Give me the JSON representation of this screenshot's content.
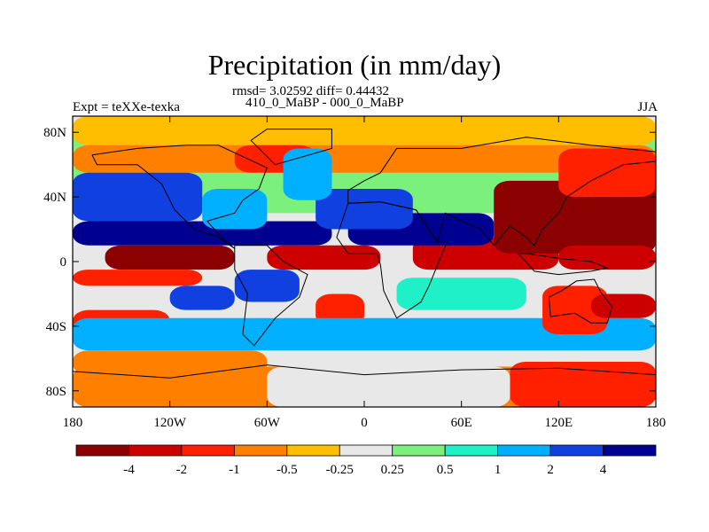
{
  "chart_data": {
    "type": "heatmap",
    "title": "Precipitation (in mm/day)",
    "stats_line": "rmsd= 3.02592 diff= 0.44432",
    "subtitle": "410_0_MaBP - 000_0_MaBP",
    "left_label": "Expt = teXXe-texka",
    "right_label": "JJA",
    "x_ticks": [
      {
        "value": -180,
        "label": "180"
      },
      {
        "value": -120,
        "label": "120W"
      },
      {
        "value": -60,
        "label": "60W"
      },
      {
        "value": 0,
        "label": "0"
      },
      {
        "value": 60,
        "label": "60E"
      },
      {
        "value": 120,
        "label": "120E"
      },
      {
        "value": 180,
        "label": "180"
      }
    ],
    "y_ticks": [
      {
        "value": 80,
        "label": "80N"
      },
      {
        "value": 40,
        "label": "40N"
      },
      {
        "value": 0,
        "label": "0"
      },
      {
        "value": -40,
        "label": "40S"
      },
      {
        "value": -80,
        "label": "80S"
      }
    ],
    "xlim": [
      -180,
      180
    ],
    "ylim": [
      -90,
      90
    ],
    "colorbar": {
      "levels": [
        "-4",
        "-2",
        "-1",
        "-0.5",
        "-0.25",
        "0.25",
        "0.5",
        "1",
        "2",
        "4"
      ],
      "colors": [
        "#8b0000",
        "#cd0000",
        "#ff2000",
        "#ff7f00",
        "#ffbf00",
        "#e8e8e8",
        "#7cf07c",
        "#20f0c8",
        "#00b0ff",
        "#1040e0",
        "#000090"
      ]
    },
    "fields": [
      {
        "lat": [
          30,
          85
        ],
        "lon": [
          -180,
          180
        ],
        "v": 0.3
      },
      {
        "lat": [
          72,
          90
        ],
        "lon": [
          -180,
          180
        ],
        "v": -0.35
      },
      {
        "lat": [
          55,
          72
        ],
        "lon": [
          -180,
          180
        ],
        "v": -0.6
      },
      {
        "lat": [
          25,
          55
        ],
        "lon": [
          -180,
          -100
        ],
        "v": 2.5
      },
      {
        "lat": [
          10,
          25
        ],
        "lon": [
          -180,
          -20
        ],
        "v": 5
      },
      {
        "lat": [
          20,
          45
        ],
        "lon": [
          -100,
          -60
        ],
        "v": 1.5
      },
      {
        "lat": [
          -5,
          10
        ],
        "lon": [
          -160,
          -80
        ],
        "v": -5
      },
      {
        "lat": [
          -15,
          -5
        ],
        "lon": [
          -180,
          -100
        ],
        "v": -1.5
      },
      {
        "lat": [
          -5,
          10
        ],
        "lon": [
          -60,
          10
        ],
        "v": -3
      },
      {
        "lat": [
          -5,
          15
        ],
        "lon": [
          30,
          120
        ],
        "v": -3.5
      },
      {
        "lat": [
          10,
          30
        ],
        "lon": [
          -10,
          80
        ],
        "v": 5
      },
      {
        "lat": [
          20,
          45
        ],
        "lon": [
          -30,
          30
        ],
        "v": 2.5
      },
      {
        "lat": [
          5,
          50
        ],
        "lon": [
          80,
          180
        ],
        "v": -4.5
      },
      {
        "lat": [
          -5,
          10
        ],
        "lon": [
          120,
          180
        ],
        "v": -2.5
      },
      {
        "lat": [
          -25,
          -5
        ],
        "lon": [
          -80,
          -40
        ],
        "v": 2
      },
      {
        "lat": [
          -40,
          -20
        ],
        "lon": [
          -30,
          0
        ],
        "v": -1.5
      },
      {
        "lat": [
          -50,
          -30
        ],
        "lon": [
          -180,
          -120
        ],
        "v": -2
      },
      {
        "lat": [
          -30,
          -15
        ],
        "lon": [
          -120,
          -80
        ],
        "v": 2
      },
      {
        "lat": [
          -55,
          -35
        ],
        "lon": [
          -180,
          180
        ],
        "v": 1.5
      },
      {
        "lat": [
          -30,
          -10
        ],
        "lon": [
          20,
          100
        ],
        "v": 0.8
      },
      {
        "lat": [
          -45,
          -15
        ],
        "lon": [
          110,
          150
        ],
        "v": -1.5
      },
      {
        "lat": [
          -35,
          -20
        ],
        "lon": [
          140,
          180
        ],
        "v": -3
      },
      {
        "lat": [
          -70,
          -55
        ],
        "lon": [
          -180,
          -60
        ],
        "v": -0.7
      },
      {
        "lat": [
          -90,
          -65
        ],
        "lon": [
          -180,
          180
        ],
        "v": -0.8
      },
      {
        "lat": [
          -90,
          -65
        ],
        "lon": [
          -60,
          90
        ],
        "v": 0.1
      },
      {
        "lat": [
          -90,
          -62
        ],
        "lon": [
          90,
          180
        ],
        "v": -1.2
      },
      {
        "lat": [
          40,
          70
        ],
        "lon": [
          120,
          180
        ],
        "v": -1.2
      },
      {
        "lat": [
          55,
          72
        ],
        "lon": [
          -80,
          -30
        ],
        "v": -2
      },
      {
        "lat": [
          38,
          70
        ],
        "lon": [
          -50,
          -20
        ],
        "v": 1.5
      }
    ]
  }
}
